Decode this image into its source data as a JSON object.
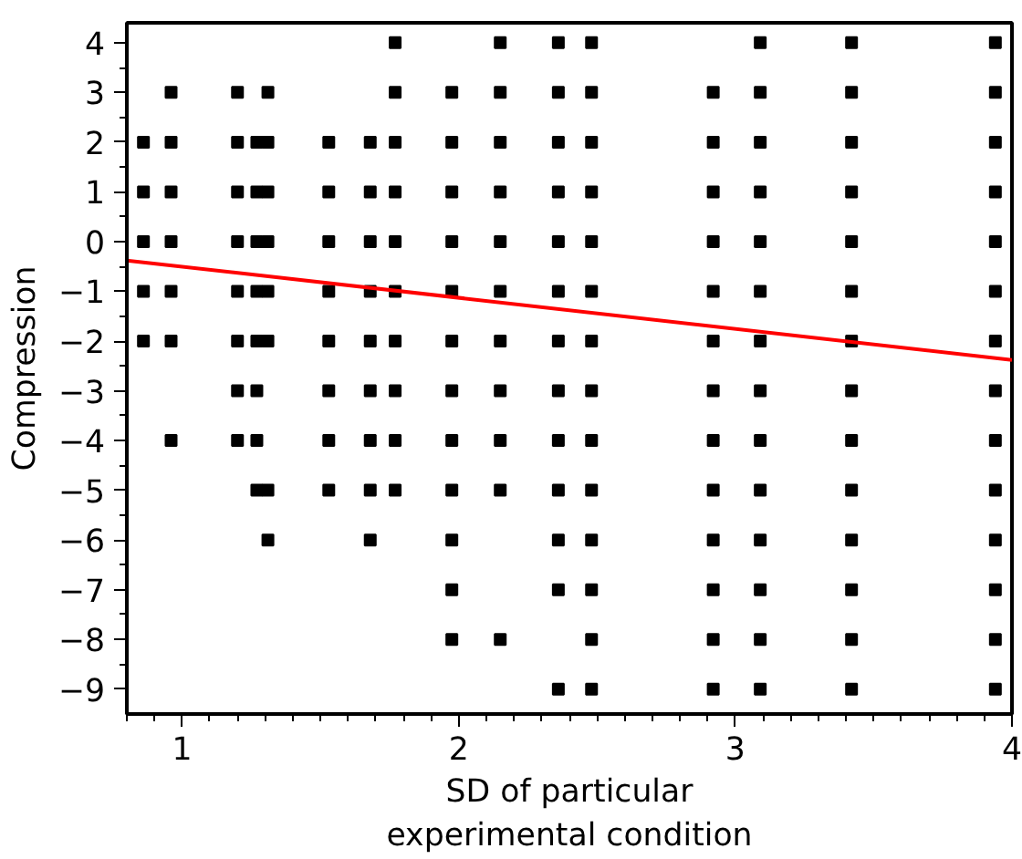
{
  "chart_data": {
    "type": "scatter",
    "xlabel": "SD of particular\nexperimental condition",
    "ylabel": "Compression",
    "xlim": [
      0.8,
      4
    ],
    "ylim": [
      -9.5,
      4.4
    ],
    "xticks": [
      1,
      2,
      3,
      4
    ],
    "yticks": [
      {
        "value": -9,
        "label": "−9"
      },
      {
        "value": -8,
        "label": "−8"
      },
      {
        "value": -7,
        "label": "−7"
      },
      {
        "value": -6,
        "label": "−6"
      },
      {
        "value": -5,
        "label": "−5"
      },
      {
        "value": -4,
        "label": "−4"
      },
      {
        "value": -3,
        "label": "−3"
      },
      {
        "value": -2,
        "label": "−2"
      },
      {
        "value": -1,
        "label": "−1"
      },
      0,
      1,
      2,
      3,
      4
    ],
    "grid": false,
    "series": [
      {
        "marker": "square",
        "color": "#000000",
        "x": [
          0.86,
          0.86,
          0.86,
          0.86,
          0.86,
          0.96,
          0.96,
          0.96,
          0.96,
          0.96,
          0.96,
          0.96,
          1.2,
          1.2,
          1.2,
          1.2,
          1.2,
          1.2,
          1.2,
          1.2,
          1.27,
          1.27,
          1.27,
          1.27,
          1.27,
          1.27,
          1.27,
          1.27,
          1.31,
          1.31,
          1.31,
          1.31,
          1.31,
          1.31,
          1.31,
          1.31,
          1.53,
          1.53,
          1.53,
          1.53,
          1.53,
          1.53,
          1.53,
          1.53,
          1.68,
          1.68,
          1.68,
          1.68,
          1.68,
          1.68,
          1.68,
          1.68,
          1.68,
          1.77,
          1.77,
          1.77,
          1.77,
          1.77,
          1.77,
          1.77,
          1.77,
          1.77,
          1.77,
          1.975,
          1.975,
          1.975,
          1.975,
          1.975,
          1.975,
          1.975,
          1.975,
          1.975,
          1.975,
          1.975,
          1.975,
          2.15,
          2.15,
          2.15,
          2.15,
          2.15,
          2.15,
          2.15,
          2.15,
          2.15,
          2.15,
          2.15,
          2.36,
          2.36,
          2.36,
          2.36,
          2.36,
          2.36,
          2.36,
          2.36,
          2.36,
          2.36,
          2.36,
          2.36,
          2.36,
          2.48,
          2.48,
          2.48,
          2.48,
          2.48,
          2.48,
          2.48,
          2.48,
          2.48,
          2.48,
          2.48,
          2.48,
          2.48,
          2.48,
          2.92,
          2.92,
          2.92,
          2.92,
          2.92,
          2.92,
          2.92,
          2.92,
          2.92,
          2.92,
          2.92,
          2.92,
          2.92,
          3.09,
          3.09,
          3.09,
          3.09,
          3.09,
          3.09,
          3.09,
          3.09,
          3.09,
          3.09,
          3.09,
          3.09,
          3.09,
          3.09,
          3.42,
          3.42,
          3.42,
          3.42,
          3.42,
          3.42,
          3.42,
          3.42,
          3.42,
          3.42,
          3.42,
          3.42,
          3.42,
          3.42,
          3.94,
          3.94,
          3.94,
          3.94,
          3.94,
          3.94,
          3.94,
          3.94,
          3.94,
          3.94,
          3.94,
          3.94,
          3.94,
          3.94
        ],
        "values": [
          2,
          1,
          0,
          -1,
          -2,
          3,
          2,
          1,
          0,
          -1,
          -2,
          -4,
          3,
          2,
          1,
          0,
          -1,
          -2,
          -3,
          -4,
          2,
          1,
          0,
          -1,
          -2,
          -3,
          -4,
          -5,
          3,
          2,
          1,
          0,
          -1,
          -2,
          -5,
          -6,
          2,
          1,
          0,
          -1,
          -2,
          -3,
          -4,
          -5,
          2,
          1,
          0,
          -1,
          -2,
          -3,
          -4,
          -5,
          -6,
          4,
          3,
          2,
          1,
          0,
          -1,
          -2,
          -3,
          -4,
          -5,
          3,
          2,
          1,
          0,
          -1,
          -2,
          -3,
          -4,
          -5,
          -6,
          -7,
          -8,
          4,
          3,
          2,
          1,
          0,
          -1,
          -2,
          -3,
          -4,
          -5,
          -8,
          4,
          3,
          2,
          1,
          0,
          -1,
          -2,
          -3,
          -4,
          -5,
          -6,
          -7,
          -9,
          4,
          3,
          2,
          1,
          0,
          -1,
          -2,
          -3,
          -4,
          -5,
          -6,
          -7,
          -8,
          -9,
          3,
          2,
          1,
          0,
          -1,
          -2,
          -3,
          -4,
          -5,
          -6,
          -7,
          -8,
          -9,
          4,
          3,
          2,
          1,
          0,
          -1,
          -2,
          -3,
          -4,
          -5,
          -6,
          -7,
          -8,
          -9,
          4,
          3,
          2,
          1,
          0,
          -1,
          -2,
          -3,
          -4,
          -5,
          -6,
          -7,
          -8,
          -9,
          4,
          3,
          2,
          1,
          0,
          -1,
          -2,
          -3,
          -4,
          -5,
          -6,
          -7,
          -8,
          -9
        ]
      },
      {
        "type": "line",
        "marker": "none",
        "color": "#ff0000",
        "x": [
          0.8,
          4
        ],
        "values": [
          -0.38,
          -2.38
        ]
      }
    ]
  }
}
